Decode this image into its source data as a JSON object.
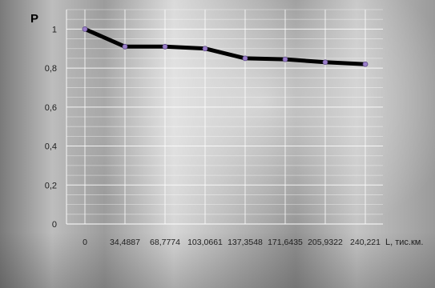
{
  "chart_data": {
    "type": "line",
    "title": "",
    "ylabel": "P",
    "xlabel": "L, тис.км.",
    "categories": [
      "0",
      "34,4887",
      "68,7774",
      "103,0661",
      "137,3548",
      "171,6435",
      "205,9322",
      "240,221"
    ],
    "series": [
      {
        "values": [
          1.0,
          0.91,
          0.91,
          0.9,
          0.85,
          0.845,
          0.83,
          0.82
        ]
      }
    ],
    "yticks": [
      "0",
      "0,2",
      "0,4",
      "0,6",
      "0,8",
      "1"
    ],
    "ylim": [
      0,
      1.1
    ],
    "grid": true,
    "line_color": "#000000",
    "marker_color": "#9b7fc9"
  }
}
